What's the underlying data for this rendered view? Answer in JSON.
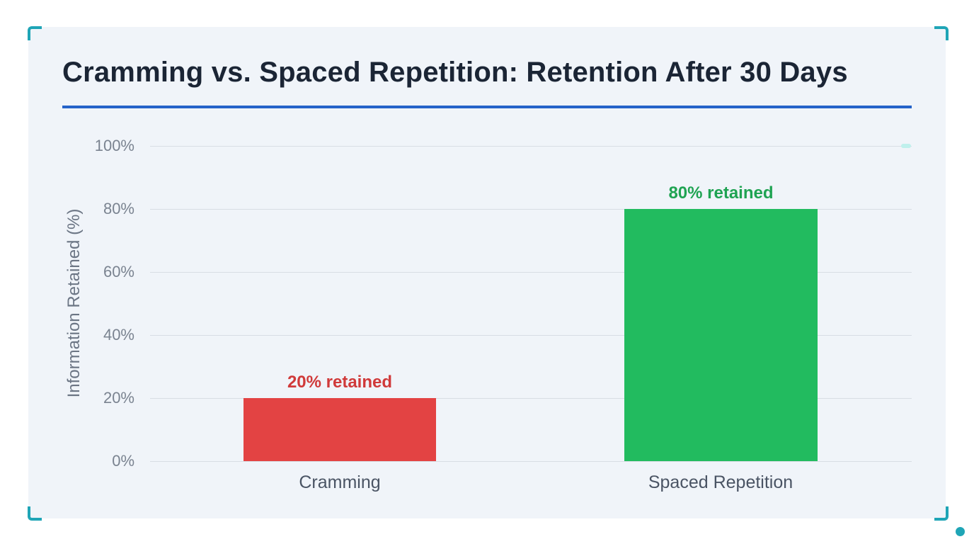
{
  "title": "Cramming vs. Spaced Repetition: Retention After 30 Days",
  "colors": {
    "panel_bg": "#f0f4f9",
    "title": "#1b2535",
    "rule": "#2563c9",
    "accent_brackets": "#1fa5b6",
    "cramming": "#e34343",
    "cramming_label": "#d03a3a",
    "spaced": "#22bb5f",
    "spaced_label": "#1fa352",
    "gridline": "#d8dde4"
  },
  "axis": {
    "ylabel": "Information Retained (%)",
    "ticks": [
      "0%",
      "20%",
      "40%",
      "60%",
      "80%",
      "100%"
    ]
  },
  "bars": [
    {
      "category": "Cramming",
      "value": 20,
      "label": "20% retained"
    },
    {
      "category": "Spaced Repetition",
      "value": 80,
      "label": "80% retained"
    }
  ],
  "chart_data": {
    "type": "bar",
    "title": "Cramming vs. Spaced Repetition: Retention After 30 Days",
    "categories": [
      "Cramming",
      "Spaced Repetition"
    ],
    "values": [
      20,
      80
    ],
    "data_labels": [
      "20% retained",
      "80% retained"
    ],
    "bar_colors": [
      "#e34343",
      "#22bb5f"
    ],
    "xlabel": "",
    "ylabel": "Information Retained (%)",
    "ylim": [
      0,
      100
    ],
    "yticks": [
      0,
      20,
      40,
      60,
      80,
      100
    ],
    "ytick_labels": [
      "0%",
      "20%",
      "40%",
      "60%",
      "80%",
      "100%"
    ],
    "grid": true,
    "legend": null
  }
}
